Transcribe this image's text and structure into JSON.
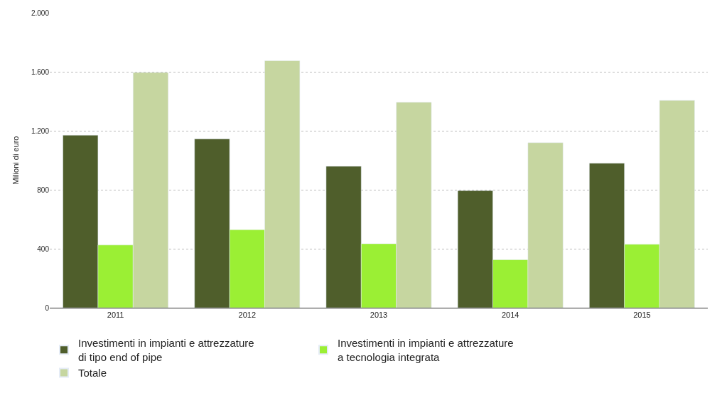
{
  "chart_data": {
    "type": "bar",
    "ylabel": "Milioni di euro",
    "categories": [
      "2011",
      "2012",
      "2013",
      "2014",
      "2015"
    ],
    "series": [
      {
        "name": "Investimenti in impianti e attrezzature di tipo end of pipe",
        "color": "#4f5e2b",
        "values": [
          1170,
          1145,
          959,
          794,
          980
        ]
      },
      {
        "name": "Investimenti in impianti e attrezzature a tecnologia integrata",
        "color": "#9bef34",
        "values": [
          425,
          529,
          434,
          325,
          430
        ]
      },
      {
        "name": "Totale",
        "color": "#c6d6a0",
        "values": [
          1595,
          1675,
          1393,
          1119,
          1406
        ]
      }
    ],
    "ylim": [
      0,
      2000
    ],
    "yticks": [
      0,
      400,
      {
        "value": 800,
        "label": "800"
      },
      {
        "value": 1200,
        "label": "1.200"
      },
      {
        "value": 1600,
        "label": "1.600"
      },
      {
        "value": 2000,
        "label": "2.000"
      }
    ],
    "grid": "y",
    "legend": "bottom"
  }
}
